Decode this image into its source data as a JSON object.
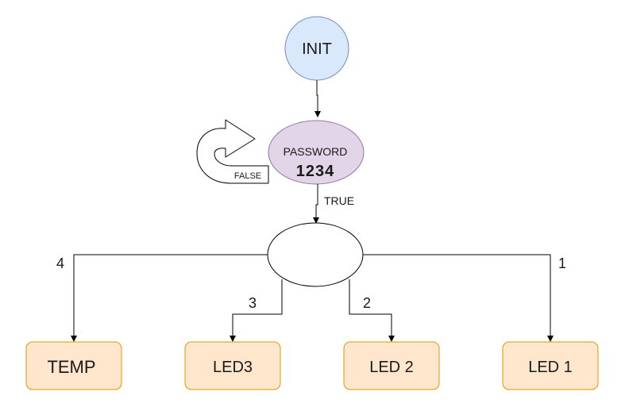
{
  "colors": {
    "init_fill": "#dae8fc",
    "init_stroke": "#6c8ebf",
    "password_fill": "#e1d5e7",
    "password_stroke": "#9673a6",
    "state_fill": "#ffe6cc",
    "state_stroke": "#d79b00",
    "edge": "#000000"
  },
  "nodes": {
    "init": {
      "label": "INIT"
    },
    "password": {
      "label": "PASSWORD",
      "code": "1234"
    },
    "selector": {
      "label": ""
    },
    "temp": {
      "label": "TEMP"
    },
    "led3": {
      "label": "LED3"
    },
    "led2": {
      "label": "LED 2"
    },
    "led1": {
      "label": "LED 1"
    }
  },
  "edges": {
    "false_loop": {
      "label": "FALSE"
    },
    "password_true": {
      "label": "TRUE"
    },
    "to_temp": {
      "label": "4"
    },
    "to_led3": {
      "label": "3"
    },
    "to_led2": {
      "label": "2"
    },
    "to_led1": {
      "label": "1"
    }
  }
}
